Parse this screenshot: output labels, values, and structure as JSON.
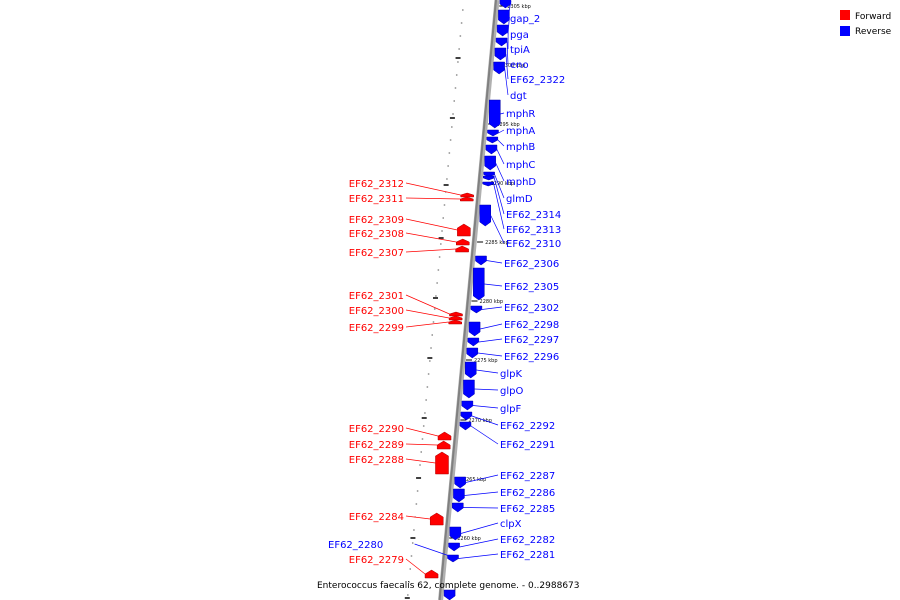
{
  "caption": "Enterococcus faecalis 62, complete genome. - 0..2988673",
  "legend": [
    {
      "label": "Forward",
      "color": "#ff0000"
    },
    {
      "label": "Reverse",
      "color": "#0000ff"
    }
  ],
  "colors": {
    "forward": "#ff0000",
    "reverse": "#0000ff",
    "backbone": "#808080"
  },
  "ticks": [
    "2305 kbp",
    "2300 kbp",
    "2295 kbp",
    "2290 kbp",
    "2285 kbp",
    "2280 kbp",
    "2275 kbp",
    "2270 kbp",
    "2265 kbp",
    "2260 kbp"
  ],
  "reverse_genes": [
    "gap_2",
    "pga",
    "tpiA",
    "eno",
    "EF62_2322",
    "dgt",
    "mphR",
    "mphA",
    "mphB",
    "mphC",
    "mphD",
    "glmD",
    "EF62_2314",
    "EF62_2313",
    "EF62_2310",
    "EF62_2306",
    "EF62_2305",
    "EF62_2302",
    "EF62_2298",
    "EF62_2297",
    "EF62_2296",
    "glpK",
    "glpO",
    "glpF",
    "EF62_2292",
    "EF62_2291",
    "EF62_2287",
    "EF62_2286",
    "EF62_2285",
    "clpX",
    "EF62_2282",
    "EF62_2281",
    "EF62_2280"
  ],
  "forward_genes": [
    "EF62_2312",
    "EF62_2311",
    "EF62_2309",
    "EF62_2308",
    "EF62_2307",
    "EF62_2301",
    "EF62_2300",
    "EF62_2299",
    "EF62_2290",
    "EF62_2289",
    "EF62_2288",
    "EF62_2284",
    "EF62_2279"
  ]
}
